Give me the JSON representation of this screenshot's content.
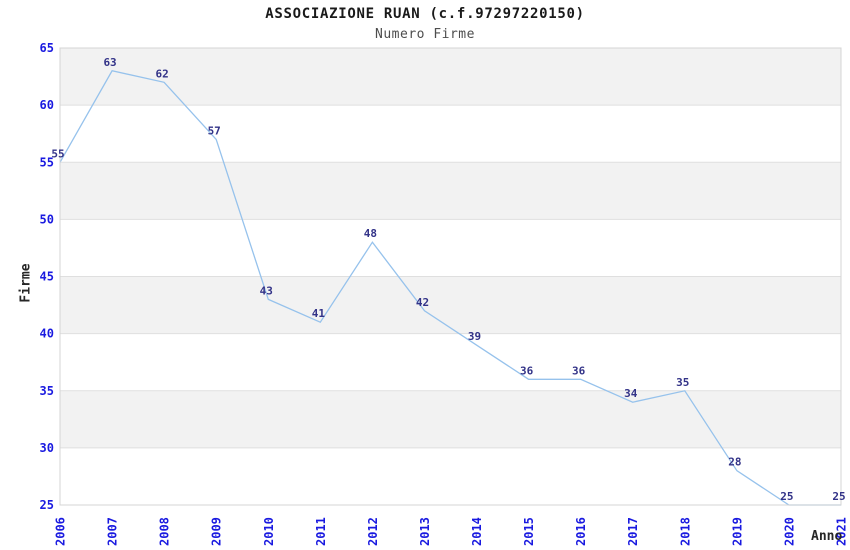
{
  "header": {
    "title": "ASSOCIAZIONE RUAN (c.f.97297220150)",
    "subtitle": "Numero Firme"
  },
  "chart_data": {
    "type": "line",
    "title": "ASSOCIAZIONE RUAN (c.f.97297220150)",
    "subtitle": "Numero Firme",
    "xlabel": "Anno",
    "ylabel": "Firme",
    "x": [
      2006,
      2007,
      2008,
      2009,
      2010,
      2011,
      2012,
      2013,
      2014,
      2015,
      2016,
      2017,
      2018,
      2019,
      2020,
      2021
    ],
    "series": [
      {
        "name": "Firme",
        "values": [
          55,
          63,
          62,
          57,
          43,
          41,
          48,
          42,
          39,
          36,
          36,
          34,
          35,
          28,
          25,
          25
        ]
      }
    ],
    "ylim": [
      25,
      65
    ],
    "ytick_step": 5,
    "grid": true,
    "legend": "none",
    "alternating_bands": true,
    "data_labels_shown": true,
    "colors": {
      "line": "#96c2ec",
      "tick_labels": "#1a1ae0",
      "data_labels": "#333388",
      "band": "#f2f2f2",
      "gridline": "#dfdfdf",
      "plot_border": "#d4d4d4",
      "title": "#1a1a1a",
      "subtitle": "#4d4d4d",
      "axis_titles": "#262626",
      "background": "#ffffff"
    }
  }
}
